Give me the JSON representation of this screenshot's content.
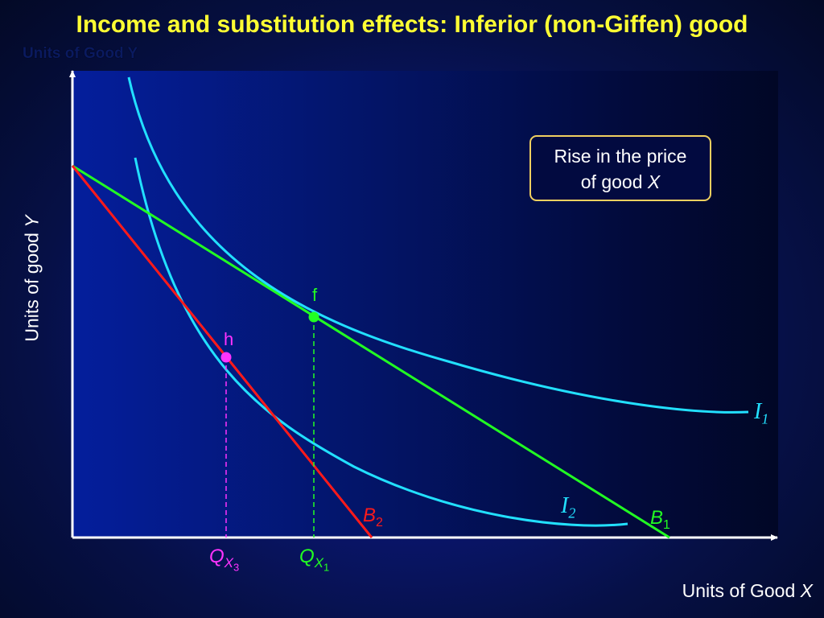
{
  "title": "Income and substitution effects: Inferior (non-Giffen) good",
  "ghost_label": "Units of Good Y",
  "axes": {
    "y_label_text": "Units of good ",
    "y_label_var": "Y",
    "x_label_text": "Units of Good ",
    "x_label_var": "X"
  },
  "callout": {
    "line1": "Rise in the price",
    "line2_text": "of good ",
    "line2_var": "X"
  },
  "points": {
    "f": "f",
    "h": "h"
  },
  "curves": {
    "i1": {
      "letter": "I",
      "sub": "1"
    },
    "i2": {
      "letter": "I",
      "sub": "2"
    }
  },
  "budget_lines": {
    "b1": {
      "letter": "B",
      "sub": "1"
    },
    "b2": {
      "letter": "B",
      "sub": "2"
    }
  },
  "quantities": {
    "qx1": {
      "letter": "Q",
      "sub": "X",
      "subsub": "1"
    },
    "qx3": {
      "letter": "Q",
      "sub": "X",
      "subsub": "3"
    }
  },
  "colors": {
    "title": "#ffff33",
    "indifference": "#22e0ff",
    "b1": "#22ff22",
    "b2": "#ff1a1a",
    "point_f": "#22ff22",
    "point_h": "#ff33ff",
    "callout_border": "#f0d060"
  }
}
